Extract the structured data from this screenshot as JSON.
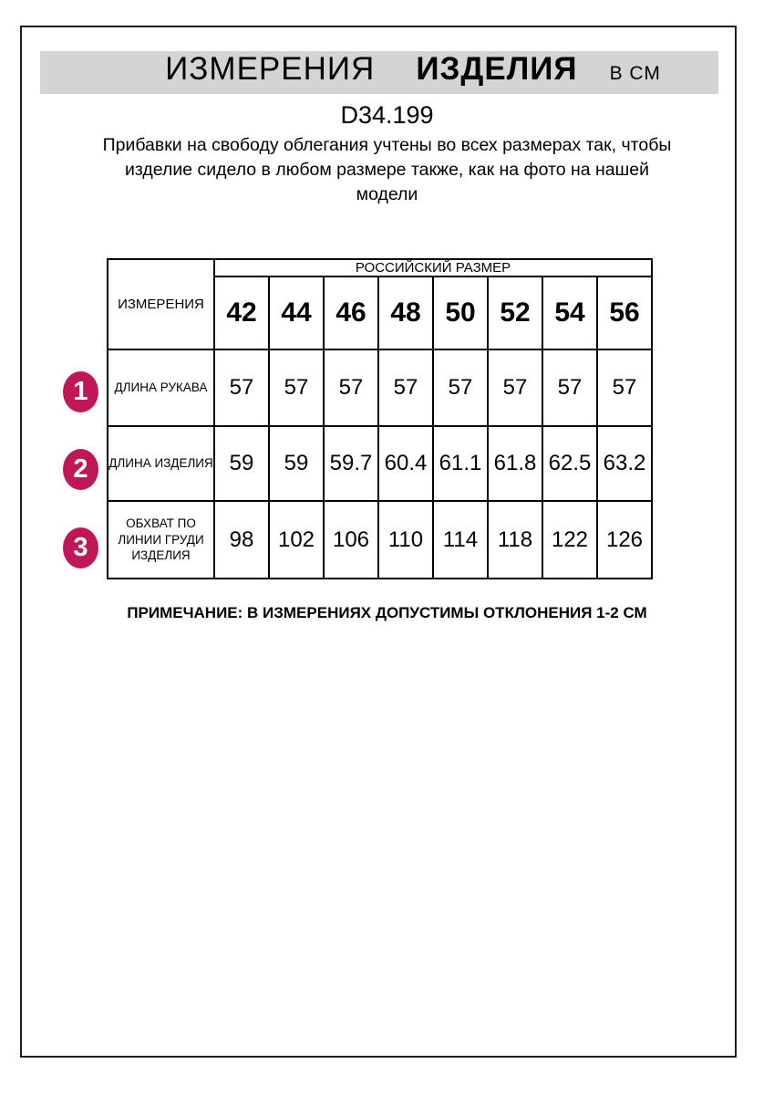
{
  "page": {
    "banner": {
      "title_regular": "ИЗМЕРЕНИЯ",
      "title_bold": "ИЗДЕЛИЯ",
      "title_unit": "В СМ",
      "background_color": "#d4d4d4"
    },
    "product_code": "D34.199",
    "description_lines": [
      "Прибавки на свободу облегания учтены во всех размерах так, чтобы",
      "изделие сидело в любом размере также, как на фото на нашей",
      "модели"
    ],
    "note": "ПРИМЕЧАНИЕ: В ИЗМЕРЕНИЯХ ДОПУСТИМЫ ОТКЛОНЕНИЯ 1-2 СМ"
  },
  "table": {
    "corner_header": "ИЗМЕРЕНИЯ",
    "group_header": "РОССИЙСКИЙ РАЗМЕР",
    "sizes": [
      "42",
      "44",
      "46",
      "48",
      "50",
      "52",
      "54",
      "56"
    ],
    "rows": [
      {
        "num": "1",
        "label": "ДЛИНА РУКАВА",
        "values": [
          "57",
          "57",
          "57",
          "57",
          "57",
          "57",
          "57",
          "57"
        ]
      },
      {
        "num": "2",
        "label": "ДЛИНА ИЗДЕЛИЯ",
        "values": [
          "59",
          "59",
          "59.7",
          "60.4",
          "61.1",
          "61.8",
          "62.5",
          "63.2"
        ]
      },
      {
        "num": "3",
        "label": "ОБХВАТ ПО ЛИНИИ ГРУДИ ИЗДЕЛИЯ",
        "values": [
          "98",
          "102",
          "106",
          "110",
          "114",
          "118",
          "122",
          "126"
        ]
      }
    ],
    "badge_color": "#c01758"
  },
  "chart_data": {
    "type": "table",
    "title": "ИЗМЕРЕНИЯ ИЗДЕЛИЯ В СМ",
    "columns": [
      "ИЗМЕРЕНИЯ",
      "42",
      "44",
      "46",
      "48",
      "50",
      "52",
      "54",
      "56"
    ],
    "rows": [
      [
        "ДЛИНА РУКАВА",
        57,
        57,
        57,
        57,
        57,
        57,
        57,
        57
      ],
      [
        "ДЛИНА ИЗДЕЛИЯ",
        59,
        59,
        59.7,
        60.4,
        61.1,
        61.8,
        62.5,
        63.2
      ],
      [
        "ОБХВАТ ПО ЛИНИИ ГРУДИ ИЗДЕЛИЯ",
        98,
        102,
        106,
        110,
        114,
        118,
        122,
        126
      ]
    ]
  }
}
